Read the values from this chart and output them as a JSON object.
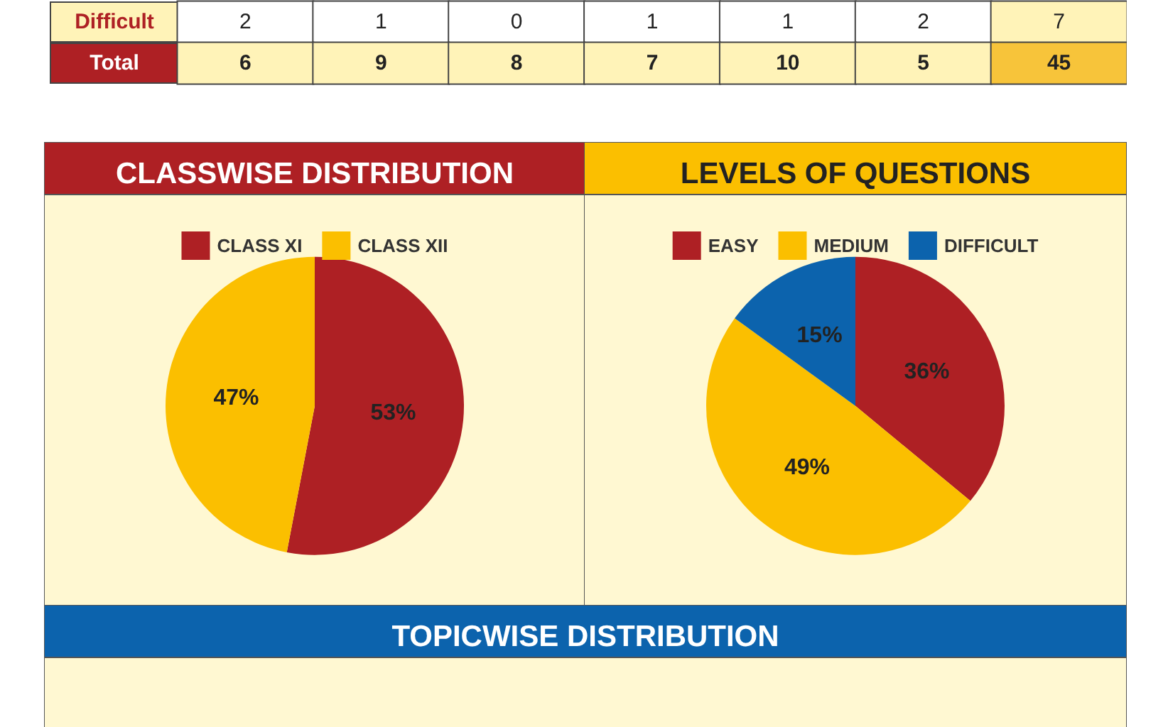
{
  "chart_data": [
    {
      "type": "heatmap",
      "categories": [
        null,
        null,
        null,
        null,
        null,
        null,
        null
      ],
      "y_categories": [
        "Difficult",
        "Total"
      ],
      "cells": [
        [
          2,
          1,
          0,
          1,
          1,
          2,
          7
        ],
        [
          6,
          9,
          8,
          7,
          10,
          5,
          45
        ]
      ],
      "data_labels": true
    },
    {
      "type": "pie",
      "title": "CLASSWISE DISTRIBUTION",
      "categories": [
        "CLASS XI",
        "CLASS XII"
      ],
      "values": [
        53,
        47
      ],
      "colors": [
        "#ae2024",
        "#fbbf00"
      ],
      "value_labels": [
        "53%",
        "47%"
      ],
      "legend": "top"
    },
    {
      "type": "pie",
      "title": "LEVELS OF QUESTIONS",
      "categories": [
        "EASY",
        "MEDIUM",
        "DIFFICULT"
      ],
      "values": [
        36,
        49,
        15
      ],
      "colors": [
        "#ae2024",
        "#fbbf00",
        "#0c63ad"
      ],
      "value_labels": [
        "36%",
        "49%",
        "15%"
      ],
      "legend": "top"
    },
    {
      "type": "other",
      "title": "TOPICWISE DISTRIBUTION"
    }
  ]
}
